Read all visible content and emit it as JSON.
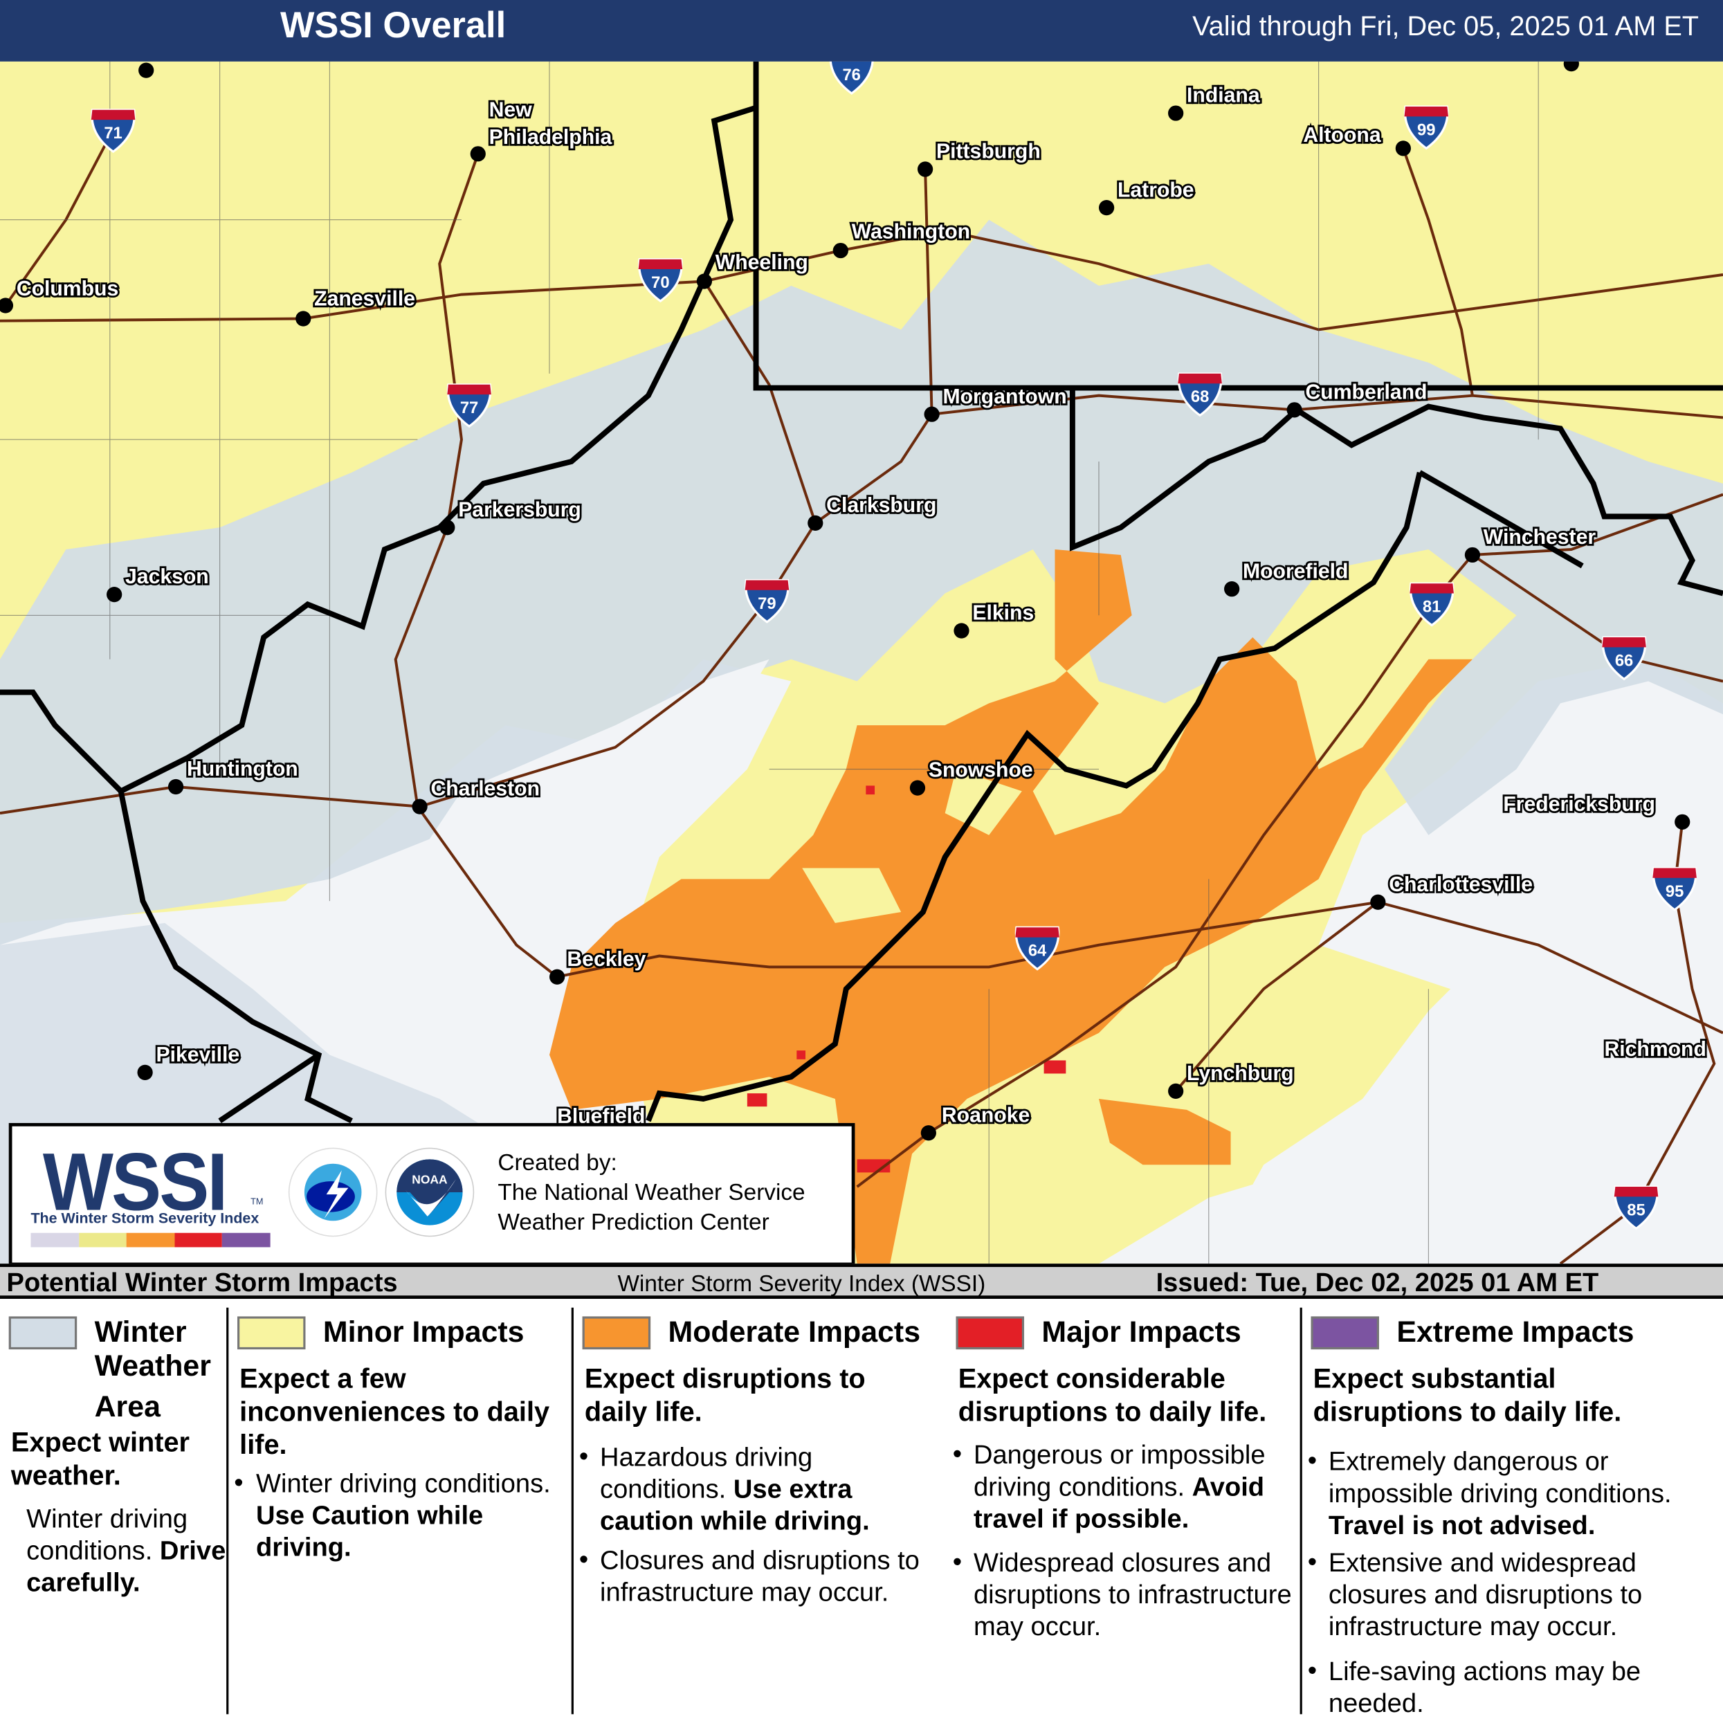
{
  "header": {
    "title": "WSSI Overall",
    "valid": "Valid through Fri, Dec 05, 2025 01 AM ET"
  },
  "colors": {
    "header_bg": "#213a6e",
    "winter_weather": "#d3dde6",
    "minor": "#f8f4a0",
    "moderate": "#f7952f",
    "major": "#e31f26",
    "extreme": "#7c54a1",
    "no_impact": "#f2f4f7",
    "roads": "#6b2a0c",
    "state_lines": "#000000"
  },
  "map": {
    "cities": [
      "Columbus",
      "Zanesville",
      "New Philadelphia",
      "Wheeling",
      "Washington",
      "Pittsburgh",
      "Indiana",
      "Latrobe",
      "Altoona",
      "Morgantown",
      "Cumberland",
      "Parkersburg",
      "Clarksburg",
      "Jackson",
      "Elkins",
      "Moorefield",
      "Winchester",
      "Huntington",
      "Charleston",
      "Snowshoe",
      "Fredericksburg",
      "Charlottesville",
      "Beckley",
      "Pikeville",
      "Lynchburg",
      "Roanoke",
      "Richmond",
      "Bluefield"
    ],
    "interstates": [
      "71",
      "76",
      "99",
      "70",
      "77",
      "68",
      "79",
      "81",
      "66",
      "95",
      "64",
      "85"
    ]
  },
  "logo": {
    "wssi": "WSSI",
    "tm": "TM",
    "subtitle": "The Winter Storm Severity Index",
    "nws": "NATIONAL WEATHER SERVICE",
    "noaa": "NOAA",
    "created_by": "Created by:",
    "org1": "The National Weather Service",
    "org2": "Weather Prediction Center"
  },
  "band": {
    "left": "Potential Winter Storm Impacts",
    "middle": "Winter Storm Severity Index (WSSI)",
    "right": "Issued: Tue, Dec 02, 2025 01 AM ET"
  },
  "legend": [
    {
      "title": "Winter Weather Area",
      "t1": "Winter",
      "t2": "Weather",
      "t3": "Area",
      "expect": "Expect winter weather.",
      "b1": "Winter driving conditions.",
      "b1bold": "Drive carefully."
    },
    {
      "title": "Minor Impacts",
      "expect": "Expect a few inconveniences to daily life.",
      "b1": "Winter driving conditions.",
      "b1bold": "Use Caution while driving."
    },
    {
      "title": "Moderate Impacts",
      "expect": "Expect disruptions to daily life.",
      "b1": "Hazardous driving conditions.",
      "b1bold": "Use extra caution while driving.",
      "b2": "Closures and disruptions to infrastructure may occur."
    },
    {
      "title": "Major Impacts",
      "expect": "Expect considerable disruptions to daily life.",
      "b1": "Dangerous or impossible driving conditions.",
      "b1bold": "Avoid travel if possible.",
      "b2": "Widespread closures and disruptions to infrastructure may occur."
    },
    {
      "title": "Extreme Impacts",
      "expect": "Expect substantial disruptions to daily life.",
      "b1": "Extremely dangerous or impossible driving conditions.",
      "b1bold": "Travel is not advised.",
      "b2": "Extensive and widespread closures and disruptions to infrastructure may occur.",
      "b3": "Life-saving actions may be needed."
    }
  ]
}
